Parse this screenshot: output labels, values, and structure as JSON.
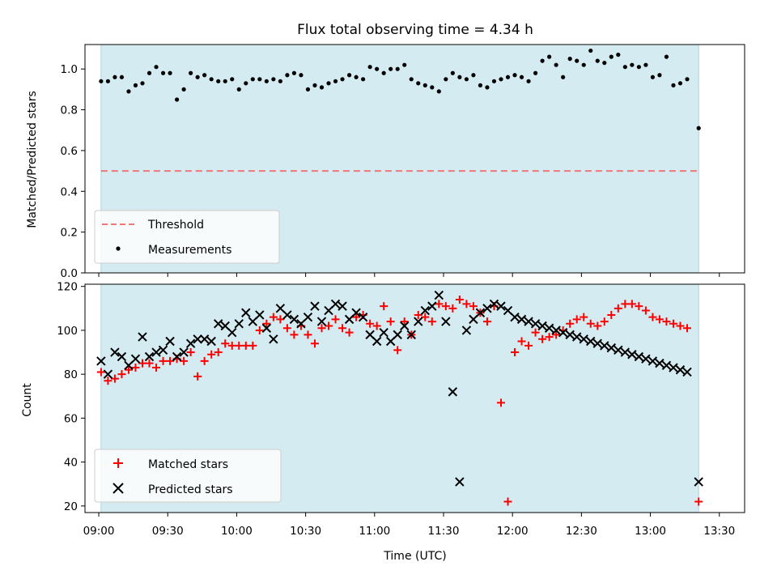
{
  "chart_data": {
    "title": "Flux total observing time = 4.34 h",
    "xlabel": "Time (UTC)",
    "x_ticks": [
      "09:00",
      "09:30",
      "10:00",
      "10:30",
      "11:00",
      "11:30",
      "12:00",
      "12:30",
      "13:00",
      "13:30"
    ],
    "x_tick_minutes": [
      540,
      570,
      600,
      630,
      660,
      690,
      720,
      750,
      780,
      810
    ],
    "xlim_minutes": [
      534,
      821
    ],
    "observing_span_minutes": [
      541,
      801
    ],
    "shade_color": "#d4ebf1",
    "panels": [
      {
        "type": "scatter",
        "ylabel": "Matched/Predicted stars",
        "ylim": [
          0.0,
          1.12
        ],
        "y_ticks": [
          0.0,
          0.2,
          0.4,
          0.6,
          0.8,
          1.0
        ],
        "y_tick_labels": [
          "0.0",
          "0.2",
          "0.4",
          "0.6",
          "0.8",
          "1.0"
        ],
        "threshold": {
          "name": "Threshold",
          "value": 0.5,
          "color": "#f07878",
          "style": "dashed"
        },
        "series": [
          {
            "name": "Measurements",
            "marker": "dot",
            "color": "#000000",
            "x": [
              541,
              544,
              547,
              550,
              553,
              556,
              559,
              562,
              565,
              568,
              571,
              574,
              577,
              580,
              583,
              586,
              589,
              592,
              595,
              598,
              601,
              604,
              607,
              610,
              613,
              616,
              619,
              622,
              625,
              628,
              631,
              634,
              637,
              640,
              643,
              646,
              649,
              652,
              655,
              658,
              661,
              664,
              667,
              670,
              673,
              676,
              679,
              682,
              685,
              688,
              691,
              694,
              697,
              700,
              703,
              706,
              709,
              712,
              715,
              718,
              721,
              724,
              727,
              730,
              733,
              736,
              739,
              742,
              745,
              748,
              751,
              754,
              757,
              760,
              763,
              766,
              769,
              772,
              775,
              778,
              781,
              784,
              787,
              790,
              793,
              796,
              801
            ],
            "y": [
              0.94,
              0.94,
              0.96,
              0.96,
              0.89,
              0.92,
              0.93,
              0.98,
              1.01,
              0.98,
              0.98,
              0.85,
              0.9,
              0.98,
              0.96,
              0.97,
              0.95,
              0.94,
              0.94,
              0.95,
              0.9,
              0.93,
              0.95,
              0.95,
              0.94,
              0.95,
              0.94,
              0.97,
              0.98,
              0.97,
              0.9,
              0.92,
              0.91,
              0.93,
              0.94,
              0.95,
              0.97,
              0.96,
              0.95,
              1.01,
              1.0,
              0.98,
              1.0,
              1.0,
              1.02,
              0.95,
              0.93,
              0.92,
              0.91,
              0.89,
              0.95,
              0.98,
              0.96,
              0.95,
              0.97,
              0.92,
              0.91,
              0.94,
              0.95,
              0.96,
              0.97,
              0.96,
              0.94,
              0.98,
              1.04,
              1.06,
              1.02,
              0.96,
              1.05,
              1.04,
              1.02,
              1.09,
              1.04,
              1.03,
              1.06,
              1.07,
              1.01,
              1.02,
              1.01,
              1.02,
              0.96,
              0.97,
              1.06,
              0.92,
              0.93,
              0.95,
              0.71
            ]
          }
        ],
        "legend": {
          "position": "lower-left",
          "entries": [
            "Threshold",
            "Measurements"
          ]
        }
      },
      {
        "type": "scatter",
        "ylabel": "Count",
        "ylim": [
          17,
          121
        ],
        "y_ticks": [
          20,
          40,
          60,
          80,
          100,
          120
        ],
        "y_tick_labels": [
          "20",
          "40",
          "60",
          "80",
          "100",
          "120"
        ],
        "series": [
          {
            "name": "Matched stars",
            "marker": "plus",
            "color": "#ff0000",
            "x": [
              541,
              544,
              547,
              550,
              553,
              556,
              559,
              562,
              565,
              568,
              571,
              574,
              577,
              580,
              583,
              586,
              589,
              592,
              595,
              598,
              601,
              604,
              607,
              610,
              613,
              616,
              619,
              622,
              625,
              628,
              631,
              634,
              637,
              640,
              643,
              646,
              649,
              652,
              655,
              658,
              661,
              664,
              667,
              670,
              673,
              676,
              679,
              682,
              685,
              688,
              691,
              694,
              697,
              700,
              703,
              706,
              709,
              712,
              715,
              718,
              721,
              724,
              727,
              730,
              733,
              736,
              739,
              742,
              745,
              748,
              751,
              754,
              757,
              760,
              763,
              766,
              769,
              772,
              775,
              778,
              781,
              784,
              787,
              790,
              793,
              796,
              801
            ],
            "y": [
              81,
              77,
              78,
              80,
              82,
              83,
              85,
              85,
              83,
              86,
              86,
              87,
              86,
              90,
              79,
              86,
              89,
              90,
              94,
              93,
              93,
              93,
              93,
              100,
              103,
              106,
              105,
              101,
              98,
              102,
              98,
              94,
              101,
              102,
              105,
              101,
              99,
              106,
              107,
              103,
              102,
              111,
              104,
              91,
              104,
              98,
              107,
              106,
              104,
              112,
              111,
              110,
              114,
              112,
              111,
              108,
              104,
              111,
              67,
              22,
              90,
              95,
              93,
              99,
              96,
              97,
              98,
              100,
              103,
              105,
              106,
              103,
              102,
              104,
              107,
              110,
              112,
              112,
              111,
              109,
              106,
              105,
              104,
              103,
              102,
              101,
              22
            ]
          },
          {
            "name": "Predicted stars",
            "marker": "x",
            "color": "#000000",
            "x": [
              541,
              544,
              547,
              550,
              553,
              556,
              559,
              562,
              565,
              568,
              571,
              574,
              577,
              580,
              583,
              586,
              589,
              592,
              595,
              598,
              601,
              604,
              607,
              610,
              613,
              616,
              619,
              622,
              625,
              628,
              631,
              634,
              637,
              640,
              643,
              646,
              649,
              652,
              655,
              658,
              661,
              664,
              667,
              670,
              673,
              676,
              679,
              682,
              685,
              688,
              691,
              694,
              697,
              700,
              703,
              706,
              709,
              712,
              715,
              718,
              721,
              724,
              727,
              730,
              733,
              736,
              739,
              742,
              745,
              748,
              751,
              754,
              757,
              760,
              763,
              766,
              769,
              772,
              775,
              778,
              781,
              784,
              787,
              790,
              793,
              796,
              801
            ],
            "y": [
              86,
              80,
              90,
              88,
              84,
              87,
              97,
              88,
              90,
              91,
              95,
              88,
              90,
              94,
              96,
              96,
              95,
              103,
              102,
              99,
              103,
              108,
              104,
              107,
              101,
              96,
              110,
              107,
              105,
              103,
              106,
              111,
              104,
              109,
              112,
              111,
              105,
              108,
              106,
              98,
              95,
              99,
              95,
              98,
              102,
              98,
              104,
              109,
              111,
              116,
              104,
              72,
              31,
              100,
              105,
              108,
              110,
              112,
              111,
              109,
              106,
              105,
              104,
              103,
              102,
              101,
              100,
              99,
              98,
              97,
              96,
              95,
              94,
              93,
              92,
              91,
              90,
              89,
              88,
              87,
              86,
              85,
              84,
              83,
              82,
              81,
              31
            ]
          }
        ],
        "legend": {
          "position": "lower-left",
          "entries": [
            "Matched stars",
            "Predicted stars"
          ]
        }
      }
    ]
  }
}
